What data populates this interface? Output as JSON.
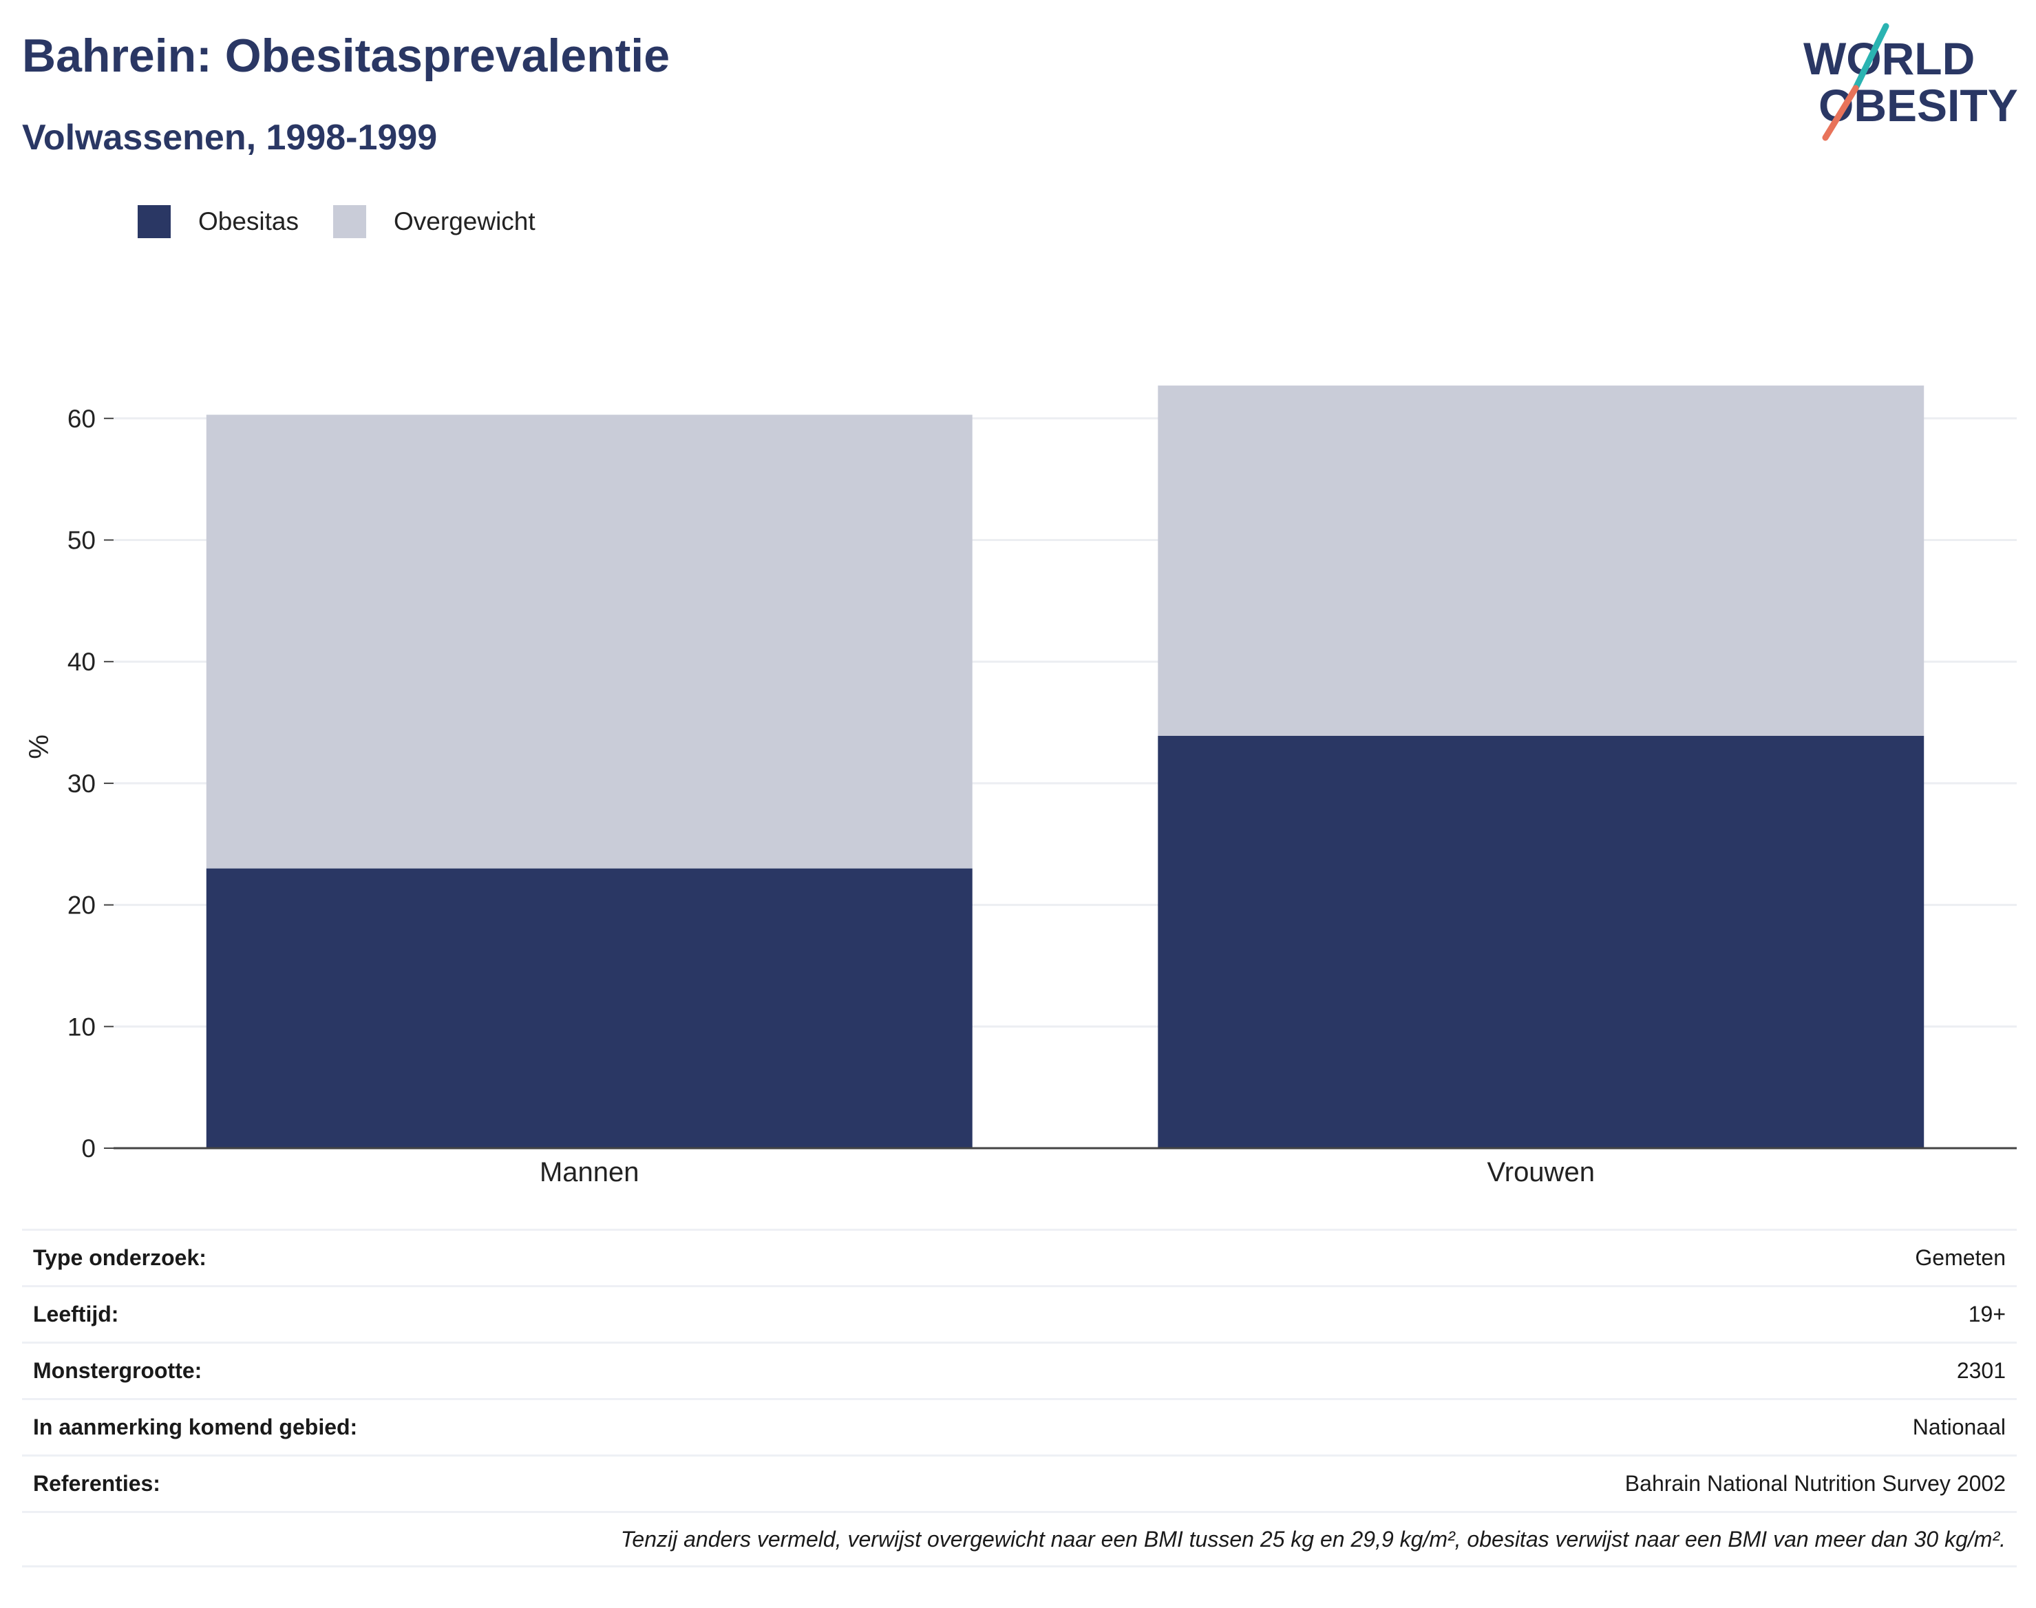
{
  "header": {
    "title": "Bahrein: Obesitasprevalentie",
    "subtitle": "Volwassenen, 1998-1999"
  },
  "logo": {
    "line1": "WORLD",
    "line2": "OBESITY",
    "slash_top_color": "#2ab3b1",
    "slash_bottom_color": "#e8735a"
  },
  "colors": {
    "obesitas": "#2a3764",
    "overgewicht": "#c9ccd8",
    "grid": "#eceef2",
    "axis": "#444444"
  },
  "chart_data": {
    "type": "bar",
    "stacked": true,
    "categories": [
      "Mannen",
      "Vrouwen"
    ],
    "series": [
      {
        "name": "Obesitas",
        "values": [
          23.0,
          33.9
        ]
      },
      {
        "name": "Overgewicht",
        "values": [
          37.3,
          28.8
        ]
      }
    ],
    "ylabel": "%",
    "ylim": [
      0,
      65
    ],
    "yticks": [
      0,
      10,
      20,
      30,
      40,
      50,
      60
    ],
    "grid": true,
    "legend": "top-left"
  },
  "info": {
    "rows": [
      {
        "label": "Type onderzoek:",
        "value": "Gemeten"
      },
      {
        "label": "Leeftijd:",
        "value": "19+"
      },
      {
        "label": "Monstergrootte:",
        "value": "2301"
      },
      {
        "label": "In aanmerking komend gebied:",
        "value": "Nationaal"
      },
      {
        "label": "Referenties:",
        "value": "Bahrain National Nutrition Survey 2002"
      }
    ],
    "note": "Tenzij anders vermeld, verwijst overgewicht naar een BMI tussen 25 kg en 29,9 kg/m², obesitas verwijst naar een BMI van meer dan 30 kg/m²."
  }
}
